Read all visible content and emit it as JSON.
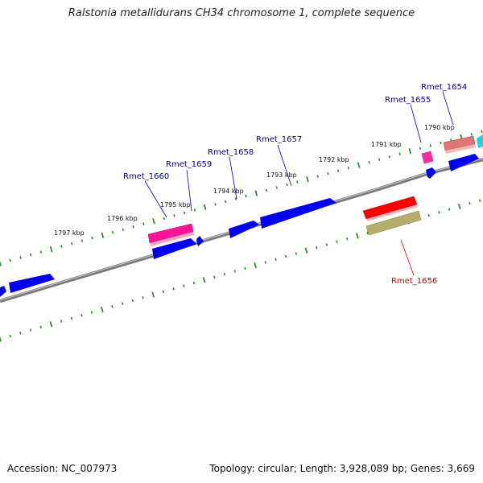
{
  "map": {
    "title": "Ralstonia metallidurans CH34 chromosome 1, complete sequence",
    "accession": "Accession: NC_007973",
    "topology": "Topology: circular; Length: 3,928,089 bp; Genes: 3,669",
    "tick_labels": [
      "1790 kbp",
      "1791 kbp",
      "1792 kbp",
      "1793 kbp",
      "1794 kbp",
      "1795 kbp",
      "1796 kbp",
      "1797 kbp"
    ],
    "gene_labels": [
      "Rmet_1654",
      "Rmet_1655",
      "Rmet_1656",
      "Rmet_1657",
      "Rmet_1658",
      "Rmet_1659",
      "Rmet_1660"
    ],
    "colors": {
      "backbone": "#808080",
      "tick": "#2e8b2e",
      "forward_cds": "#0000ff",
      "label_forward": "#00008b",
      "label_reverse": "#cc0000",
      "rna_pink": "#ff1493",
      "rna_light": "#e07070",
      "cyan": "#00e5e5",
      "red": "#ff0000",
      "olive": "#b5ad6a"
    }
  }
}
